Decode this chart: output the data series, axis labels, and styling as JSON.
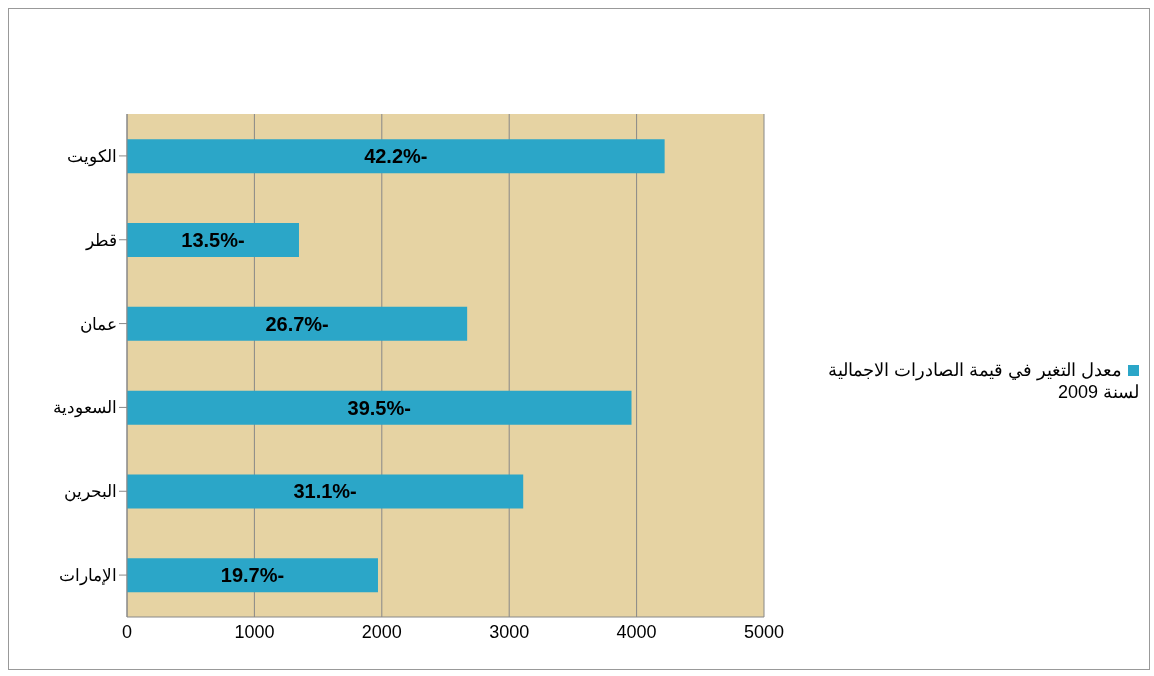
{
  "chart_data": {
    "type": "bar",
    "orientation": "horizontal",
    "categories": [
      "الكويت",
      "قطر",
      "عمان",
      "السعودية",
      "البحرين",
      "الإمارات"
    ],
    "series": [
      {
        "name": "معدل التغير في قيمة الصادرات الاجمالية لسنة 2009",
        "color": "#2ba6c8",
        "values": [
          4220,
          1350,
          2670,
          3960,
          3110,
          1970
        ]
      }
    ],
    "annotations": [
      "42.2%-",
      "13.5%-",
      "26.7%-",
      "39.5%-",
      "31.1%-",
      "19.7%-"
    ],
    "xlim": [
      0,
      5000
    ],
    "xticks": [
      0,
      1000,
      2000,
      3000,
      4000,
      5000
    ],
    "grid": "x",
    "legend": "right"
  }
}
